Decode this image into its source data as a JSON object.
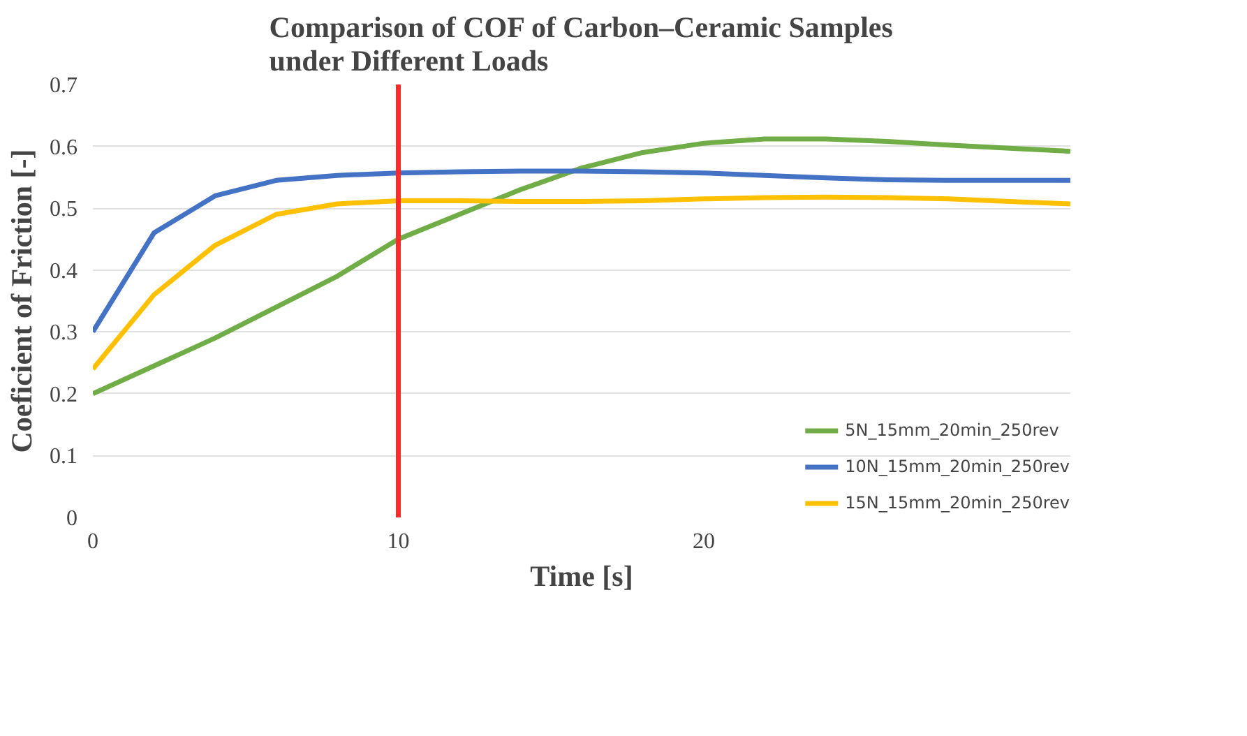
{
  "chart_data": {
    "type": "line",
    "title": "Comparison of COF of Carbon–Ceramic Samples under Different Loads",
    "xlabel": "Time [s]",
    "ylabel": "Coeficient of Friction [-]",
    "x": [
      0,
      2,
      4,
      6,
      8,
      10,
      12,
      14,
      16,
      18,
      20,
      22,
      24,
      26,
      28,
      30,
      32
    ],
    "series": [
      {
        "name": "5N_15mm_20min_250rev",
        "color": "#70ad47",
        "values": [
          0.2,
          0.245,
          0.29,
          0.34,
          0.39,
          0.45,
          0.49,
          0.53,
          0.565,
          0.59,
          0.605,
          0.612,
          0.612,
          0.608,
          0.602,
          0.597,
          0.592
        ]
      },
      {
        "name": "10N_15mm_20min_250rev",
        "color": "#4472c4",
        "values": [
          0.3,
          0.46,
          0.52,
          0.545,
          0.553,
          0.557,
          0.559,
          0.56,
          0.56,
          0.559,
          0.557,
          0.553,
          0.549,
          0.546,
          0.545,
          0.545,
          0.545
        ]
      },
      {
        "name": "15N_15mm_20min_250rev",
        "color": "#ffc000",
        "values": [
          0.24,
          0.36,
          0.44,
          0.49,
          0.507,
          0.512,
          0.512,
          0.511,
          0.511,
          0.512,
          0.515,
          0.517,
          0.518,
          0.517,
          0.515,
          0.511,
          0.507
        ]
      }
    ],
    "xlim": [
      0,
      32
    ],
    "xticks": [
      0,
      10,
      20
    ],
    "ylim": [
      0,
      0.7
    ],
    "yticks": [
      0,
      0.1,
      0.2,
      0.3,
      0.4,
      0.5,
      0.6,
      0.7
    ],
    "ref_lines": [
      {
        "axis": "x",
        "value": 10,
        "label": null,
        "color": "#ff2a2a"
      }
    ],
    "grid": "y",
    "legend": "bottom",
    "line_style": "solid",
    "marker": "none"
  }
}
